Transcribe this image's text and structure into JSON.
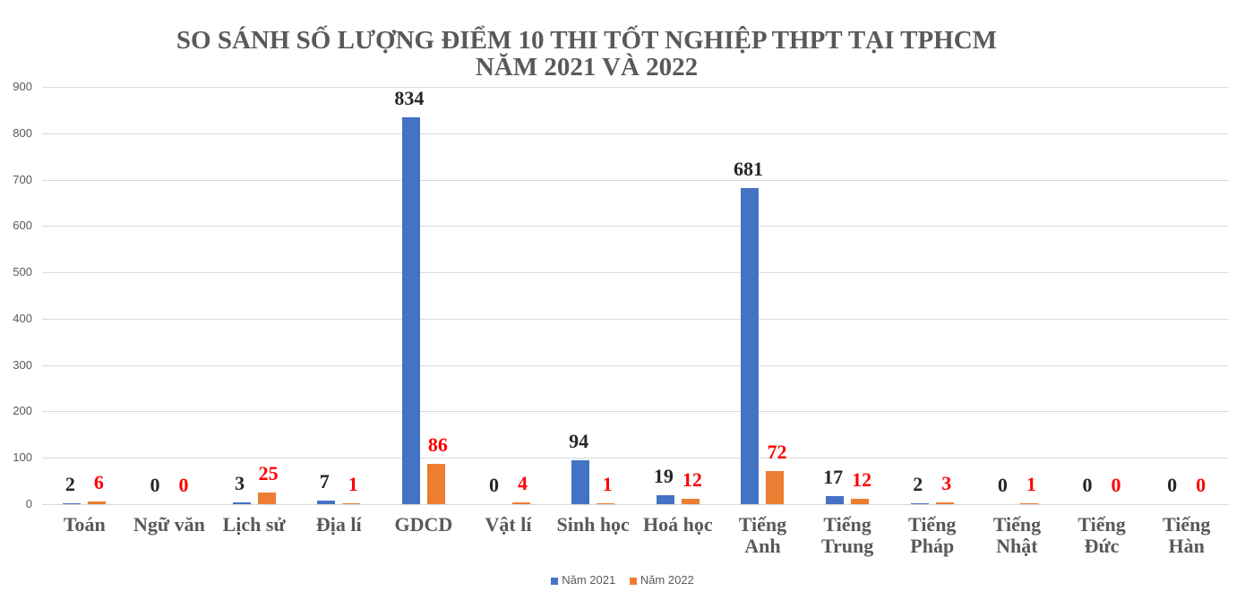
{
  "chart_data": {
    "type": "bar",
    "title": "SO SÁNH SỐ LƯỢNG ĐIỂM 10 THI TỐT NGHIỆP THPT TẠI TPHCM NĂM 2021 VÀ 2022",
    "title_lines": [
      "SO SÁNH SỐ LƯỢNG ĐIỂM 10 THI TỐT NGHIỆP THPT TẠI TPHCM",
      "NĂM 2021 VÀ 2022"
    ],
    "xlabel": "",
    "ylabel": "",
    "ylim": [
      0,
      900
    ],
    "yticks": [
      "0",
      "100",
      "200",
      "300",
      "400",
      "500",
      "600",
      "700",
      "800",
      "900"
    ],
    "grid": true,
    "legend_position": "bottom",
    "categories": [
      "Toán",
      "Ngữ văn",
      "Lịch sử",
      "Địa lí",
      "GDCD",
      "Vật lí",
      "Sinh học",
      "Hoá học",
      "Tiếng Anh",
      "Tiếng Trung",
      "Tiếng Pháp",
      "Tiếng Nhật",
      "Tiếng Đức",
      "Tiếng Hàn"
    ],
    "category_lines": [
      [
        "Toán"
      ],
      [
        "Ngữ văn"
      ],
      [
        "Lịch sử"
      ],
      [
        "Địa lí"
      ],
      [
        "GDCD"
      ],
      [
        "Vật lí"
      ],
      [
        "Sinh học"
      ],
      [
        "Hoá học"
      ],
      [
        "Tiếng",
        "Anh"
      ],
      [
        "Tiếng",
        "Trung"
      ],
      [
        "Tiếng",
        "Pháp"
      ],
      [
        "Tiếng",
        "Nhật"
      ],
      [
        "Tiếng",
        "Đức"
      ],
      [
        "Tiếng",
        "Hàn"
      ]
    ],
    "series": [
      {
        "name": "Năm 2021",
        "color": "#4472c4",
        "label_color": "#262626",
        "values": [
          2,
          0,
          3,
          7,
          834,
          0,
          94,
          19,
          681,
          17,
          2,
          0,
          0,
          0
        ]
      },
      {
        "name": "Năm 2022",
        "color": "#ed7d31",
        "label_color": "#ff0000",
        "values": [
          6,
          0,
          25,
          1,
          86,
          4,
          1,
          12,
          72,
          12,
          3,
          1,
          0,
          0
        ]
      }
    ]
  },
  "legend": {
    "items": [
      {
        "label": "Năm 2021",
        "color": "#4472c4"
      },
      {
        "label": "Năm 2022",
        "color": "#ed7d31"
      }
    ]
  }
}
